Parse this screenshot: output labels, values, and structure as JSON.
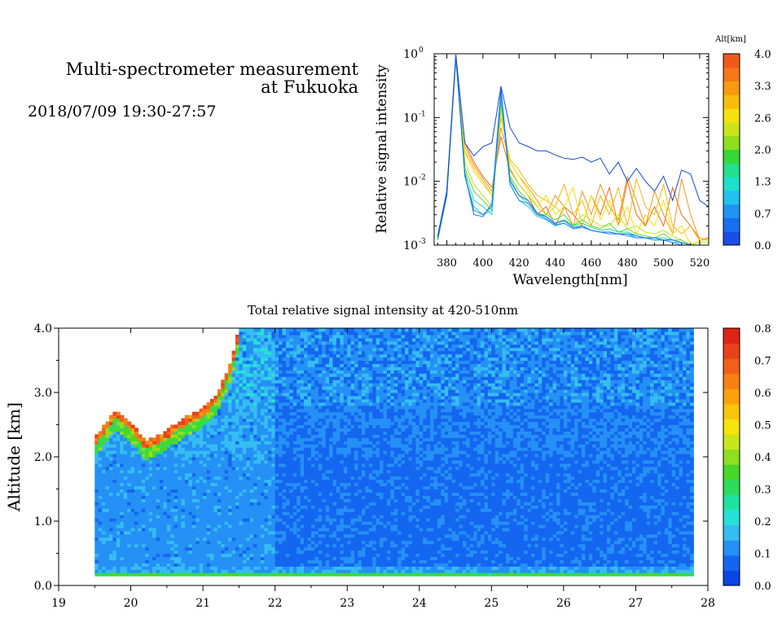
{
  "header": {
    "title_line1": "Multi-spectrometer measurement",
    "title_line2": "at Fukuoka",
    "date_range": "2018/07/09 19:30-27:57"
  },
  "colors": {
    "scale": [
      "#0a45e6",
      "#1466f0",
      "#2590f5",
      "#35bdf2",
      "#27e0d6",
      "#1ee3a0",
      "#2edb5a",
      "#47d828",
      "#8fdf20",
      "#c8e61b",
      "#f5e40c",
      "#f9c40a",
      "#f9a20b",
      "#f78015",
      "#f0601a",
      "#e8421b",
      "#de2515"
    ],
    "line_blue": "#1458d8"
  },
  "chart_data": [
    {
      "type": "line",
      "id": "spectrum",
      "xlabel": "Wavelength[nm]",
      "ylabel": "Relative signal intensity",
      "xlim": [
        373,
        525
      ],
      "ylim": [
        0.001,
        1
      ],
      "yscale": "log",
      "xticks": [
        380,
        400,
        420,
        440,
        460,
        480,
        500,
        520
      ],
      "yticks": [
        {
          "base": "10",
          "exp": "0",
          "value": 1
        },
        {
          "base": "10",
          "exp": "-1",
          "value": 0.1
        },
        {
          "base": "10",
          "exp": "-2",
          "value": 0.01
        },
        {
          "base": "10",
          "exp": "-3",
          "value": 0.001
        }
      ],
      "legend": {
        "title": "Alt[km]",
        "ticks": [
          "4.0",
          "3.3",
          "2.6",
          "2.0",
          "1.3",
          "0.7",
          "0.0"
        ],
        "colors": [
          "#1a4fe6",
          "#1770ee",
          "#1e95f3",
          "#20c2ee",
          "#1ce0cd",
          "#22e08c",
          "#34d938",
          "#8fdd1c",
          "#cbe51a",
          "#f5e10d",
          "#f8bd0c",
          "#f89a10",
          "#f57818",
          "#f05a19"
        ]
      },
      "x": [
        375,
        380,
        385,
        390,
        395,
        400,
        405,
        410,
        415,
        420,
        425,
        430,
        435,
        440,
        445,
        450,
        455,
        460,
        465,
        470,
        475,
        480,
        485,
        490,
        495,
        500,
        505,
        510,
        515,
        520,
        525
      ],
      "series": [
        {
          "alt": 4.0,
          "color": "#f06a14",
          "values": [
            0.0012,
            0.006,
            0.8,
            0.04,
            0.02,
            0.012,
            0.008,
            0.05,
            0.015,
            0.009,
            0.006,
            0.003,
            0.004,
            0.002,
            0.004,
            0.003,
            0.002,
            0.006,
            0.003,
            0.008,
            0.002,
            0.01,
            0.003,
            0.002,
            0.004,
            0.002,
            0.008,
            0.003,
            0.002,
            0.0012,
            0.0013
          ]
        },
        {
          "alt": 3.5,
          "color": "#f5961a",
          "values": [
            0.0013,
            0.006,
            0.85,
            0.035,
            0.018,
            0.011,
            0.007,
            0.07,
            0.02,
            0.012,
            0.008,
            0.005,
            0.003,
            0.006,
            0.004,
            0.002,
            0.007,
            0.003,
            0.009,
            0.004,
            0.0025,
            0.012,
            0.005,
            0.002,
            0.007,
            0.003,
            0.0015,
            0.011,
            0.003,
            0.0012,
            0.0012
          ]
        },
        {
          "alt": 3.0,
          "color": "#f9b70c",
          "values": [
            0.0012,
            0.007,
            0.82,
            0.03,
            0.016,
            0.01,
            0.006,
            0.1,
            0.022,
            0.015,
            0.009,
            0.006,
            0.005,
            0.004,
            0.009,
            0.003,
            0.005,
            0.002,
            0.006,
            0.003,
            0.008,
            0.002,
            0.011,
            0.004,
            0.003,
            0.009,
            0.002,
            0.0015,
            0.002,
            0.0013,
            0.0012
          ]
        },
        {
          "alt": 2.6,
          "color": "#f5e10d",
          "values": [
            0.0014,
            0.006,
            0.8,
            0.028,
            0.014,
            0.009,
            0.006,
            0.12,
            0.02,
            0.012,
            0.007,
            0.004,
            0.006,
            0.003,
            0.004,
            0.008,
            0.002,
            0.006,
            0.0025,
            0.005,
            0.002,
            0.004,
            0.0015,
            0.003,
            0.002,
            0.005,
            0.0015,
            0.002,
            0.001,
            0.0012,
            0.0012
          ]
        },
        {
          "alt": 2.2,
          "color": "#bde31c",
          "values": [
            0.0013,
            0.006,
            0.83,
            0.02,
            0.009,
            0.006,
            0.004,
            0.15,
            0.016,
            0.009,
            0.006,
            0.004,
            0.003,
            0.004,
            0.003,
            0.002,
            0.003,
            0.0025,
            0.002,
            0.002,
            0.003,
            0.0018,
            0.002,
            0.0016,
            0.0015,
            0.0017,
            0.0014,
            0.0012,
            0.001,
            0.0011,
            0.0011
          ]
        },
        {
          "alt": 1.8,
          "color": "#5fd829",
          "values": [
            0.0012,
            0.006,
            0.86,
            0.016,
            0.007,
            0.005,
            0.0035,
            0.17,
            0.012,
            0.007,
            0.005,
            0.003,
            0.003,
            0.0025,
            0.003,
            0.002,
            0.0025,
            0.002,
            0.0018,
            0.0022,
            0.0016,
            0.0018,
            0.0015,
            0.0014,
            0.0013,
            0.0015,
            0.0012,
            0.0012,
            0.001,
            0.001,
            0.001
          ]
        },
        {
          "alt": 1.3,
          "color": "#1fdf94",
          "values": [
            0.0012,
            0.006,
            0.88,
            0.014,
            0.005,
            0.004,
            0.003,
            0.2,
            0.011,
            0.006,
            0.0045,
            0.003,
            0.0028,
            0.0022,
            0.0025,
            0.002,
            0.0022,
            0.0019,
            0.0017,
            0.0018,
            0.0016,
            0.0016,
            0.0014,
            0.0013,
            0.0013,
            0.0013,
            0.0012,
            0.0011,
            0.001,
            0.001,
            0.001
          ]
        },
        {
          "alt": 0.9,
          "color": "#27c4ec",
          "values": [
            0.0013,
            0.006,
            0.9,
            0.012,
            0.004,
            0.003,
            0.0035,
            0.22,
            0.009,
            0.005,
            0.004,
            0.0028,
            0.0025,
            0.002,
            0.0022,
            0.0018,
            0.002,
            0.0017,
            0.0016,
            0.0016,
            0.0015,
            0.0015,
            0.0013,
            0.0013,
            0.0012,
            0.0012,
            0.0011,
            0.0011,
            0.001,
            0.001,
            0.001
          ]
        },
        {
          "alt": 0.5,
          "color": "#1e90f2",
          "values": [
            0.0014,
            0.007,
            0.92,
            0.012,
            0.0035,
            0.003,
            0.004,
            0.25,
            0.009,
            0.005,
            0.0045,
            0.003,
            0.0026,
            0.0021,
            0.0022,
            0.0018,
            0.0019,
            0.0017,
            0.0016,
            0.0015,
            0.0015,
            0.0014,
            0.0013,
            0.0013,
            0.0012,
            0.0012,
            0.0011,
            0.001,
            0.001,
            0.001,
            0.001
          ]
        },
        {
          "alt": 0.2,
          "color": "#1a6ded",
          "values": [
            0.0013,
            0.006,
            0.94,
            0.013,
            0.003,
            0.0028,
            0.0045,
            0.28,
            0.01,
            0.006,
            0.005,
            0.0032,
            0.0028,
            0.0022,
            0.0024,
            0.0019,
            0.002,
            0.0017,
            0.0016,
            0.0016,
            0.0015,
            0.0015,
            0.0014,
            0.0013,
            0.0013,
            0.0012,
            0.0012,
            0.0011,
            0.001,
            0.001,
            0.001
          ]
        },
        {
          "alt": 0.0,
          "color": "#1448d8",
          "values": [
            0.0014,
            0.007,
            0.97,
            0.04,
            0.025,
            0.035,
            0.04,
            0.31,
            0.07,
            0.04,
            0.035,
            0.03,
            0.03,
            0.026,
            0.023,
            0.022,
            0.024,
            0.02,
            0.023,
            0.013,
            0.02,
            0.01,
            0.016,
            0.01,
            0.007,
            0.012,
            0.005,
            0.015,
            0.013,
            0.005,
            0.004
          ]
        }
      ]
    },
    {
      "type": "heatmap",
      "id": "altitude-time",
      "title": "Total relative signal intensity at 420-510nm",
      "xlabel": "",
      "ylabel": "Altitude [km]",
      "xlim": [
        19,
        28
      ],
      "ylim": [
        0,
        4
      ],
      "xticks": [
        19,
        20,
        21,
        22,
        23,
        24,
        25,
        26,
        27,
        28
      ],
      "yticks": [
        "0.0",
        "1.0",
        "2.0",
        "3.0",
        "4.0"
      ],
      "data_x_range": [
        19.5,
        27.8
      ],
      "data_y_range": [
        0.15,
        4.0
      ],
      "colorbar": {
        "ticks": [
          "0.8",
          "0.7",
          "0.6",
          "0.5",
          "0.4",
          "0.3",
          "0.2",
          "0.1",
          "0.0"
        ],
        "range": [
          0,
          0.8
        ]
      },
      "cloud_top_profile": [
        {
          "x": 19.5,
          "y": 2.3
        },
        {
          "x": 19.6,
          "y": 2.45
        },
        {
          "x": 19.8,
          "y": 2.75
        },
        {
          "x": 20.0,
          "y": 2.55
        },
        {
          "x": 20.2,
          "y": 2.25
        },
        {
          "x": 20.4,
          "y": 2.35
        },
        {
          "x": 20.6,
          "y": 2.5
        },
        {
          "x": 20.8,
          "y": 2.65
        },
        {
          "x": 21.0,
          "y": 2.75
        },
        {
          "x": 21.2,
          "y": 3.0
        },
        {
          "x": 21.4,
          "y": 3.5
        },
        {
          "x": 21.5,
          "y": 4.0
        }
      ]
    }
  ]
}
